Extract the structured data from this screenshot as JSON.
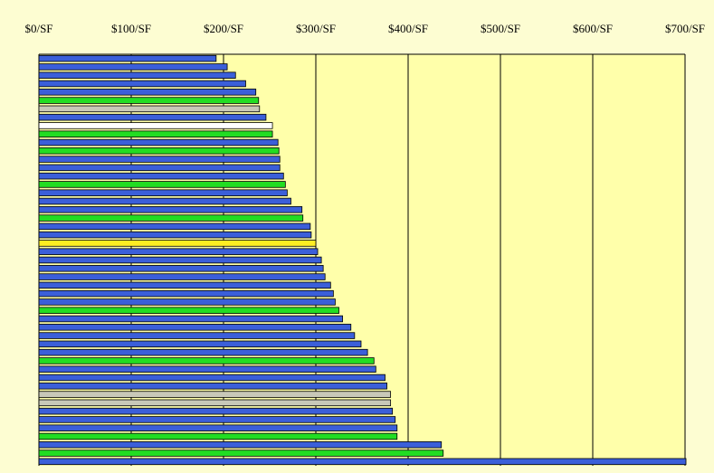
{
  "chart_data": {
    "type": "bar",
    "orientation": "horizontal",
    "title": "",
    "xlabel": "",
    "ylabel": "",
    "xlim": [
      0,
      700
    ],
    "x_tick_labels": [
      "$0/SF",
      "$100/SF",
      "$200/SF",
      "$300/SF",
      "$400/SF",
      "$500/SF",
      "$600/SF",
      "$700/SF"
    ],
    "x_tick_values": [
      0,
      100,
      200,
      300,
      400,
      500,
      600,
      700
    ],
    "x_axis_position": "top",
    "grid": "vertical",
    "legend": "none",
    "colors": {
      "blue": "#3b5fd9",
      "green": "#22dd22",
      "gray": "#c8c8b8",
      "white": "#ffffff",
      "yellow": "#ffee22",
      "plot_background": "#ffffaa",
      "page_background": "#fdfdd2"
    },
    "bars": [
      {
        "value": 192,
        "color": "blue"
      },
      {
        "value": 204,
        "color": "blue"
      },
      {
        "value": 213,
        "color": "blue"
      },
      {
        "value": 224,
        "color": "blue"
      },
      {
        "value": 235,
        "color": "blue"
      },
      {
        "value": 238,
        "color": "green"
      },
      {
        "value": 239,
        "color": "gray"
      },
      {
        "value": 246,
        "color": "blue"
      },
      {
        "value": 253,
        "color": "white"
      },
      {
        "value": 253,
        "color": "green"
      },
      {
        "value": 259,
        "color": "blue"
      },
      {
        "value": 260,
        "color": "green"
      },
      {
        "value": 261,
        "color": "blue"
      },
      {
        "value": 261,
        "color": "blue"
      },
      {
        "value": 265,
        "color": "blue"
      },
      {
        "value": 267,
        "color": "green"
      },
      {
        "value": 269,
        "color": "blue"
      },
      {
        "value": 273,
        "color": "blue"
      },
      {
        "value": 285,
        "color": "blue"
      },
      {
        "value": 286,
        "color": "green"
      },
      {
        "value": 294,
        "color": "blue"
      },
      {
        "value": 295,
        "color": "blue"
      },
      {
        "value": 300,
        "color": "yellow"
      },
      {
        "value": 302,
        "color": "blue"
      },
      {
        "value": 306,
        "color": "blue"
      },
      {
        "value": 308,
        "color": "blue"
      },
      {
        "value": 310,
        "color": "blue"
      },
      {
        "value": 316,
        "color": "blue"
      },
      {
        "value": 319,
        "color": "blue"
      },
      {
        "value": 321,
        "color": "blue"
      },
      {
        "value": 325,
        "color": "green"
      },
      {
        "value": 329,
        "color": "blue"
      },
      {
        "value": 338,
        "color": "blue"
      },
      {
        "value": 342,
        "color": "blue"
      },
      {
        "value": 349,
        "color": "blue"
      },
      {
        "value": 356,
        "color": "blue"
      },
      {
        "value": 363,
        "color": "green"
      },
      {
        "value": 365,
        "color": "blue"
      },
      {
        "value": 375,
        "color": "blue"
      },
      {
        "value": 377,
        "color": "blue"
      },
      {
        "value": 381,
        "color": "gray"
      },
      {
        "value": 381,
        "color": "gray"
      },
      {
        "value": 383,
        "color": "blue"
      },
      {
        "value": 386,
        "color": "blue"
      },
      {
        "value": 388,
        "color": "blue"
      },
      {
        "value": 388,
        "color": "green"
      },
      {
        "value": 436,
        "color": "blue"
      },
      {
        "value": 438,
        "color": "green"
      },
      {
        "value": 701,
        "color": "blue"
      }
    ]
  }
}
